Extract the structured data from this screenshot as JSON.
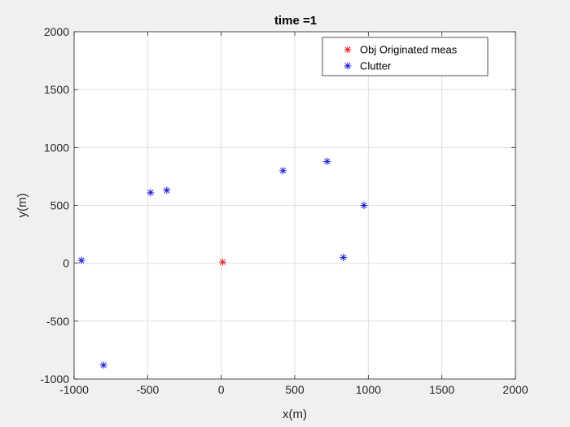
{
  "chart_data": {
    "type": "scatter",
    "title": "time =1",
    "xlabel": "x(m)",
    "ylabel": "y(m)",
    "xlim": [
      -1000,
      2000
    ],
    "ylim": [
      -1000,
      2000
    ],
    "xticks": [
      -1000,
      -500,
      0,
      500,
      1000,
      1500,
      2000
    ],
    "yticks": [
      -1000,
      -500,
      0,
      500,
      1000,
      1500,
      2000
    ],
    "grid": true,
    "legend_position": "top-right",
    "marker": "asterisk",
    "series": [
      {
        "name": "Obj Originated meas",
        "color": "#e8231f",
        "points": [
          [
            10,
            10
          ]
        ]
      },
      {
        "name": "Clutter",
        "color": "#1a1ad6",
        "points": [
          [
            -950,
            25
          ],
          [
            -800,
            -880
          ],
          [
            -480,
            610
          ],
          [
            -370,
            630
          ],
          [
            420,
            800
          ],
          [
            720,
            880
          ],
          [
            830,
            50
          ],
          [
            970,
            500
          ]
        ]
      }
    ]
  }
}
